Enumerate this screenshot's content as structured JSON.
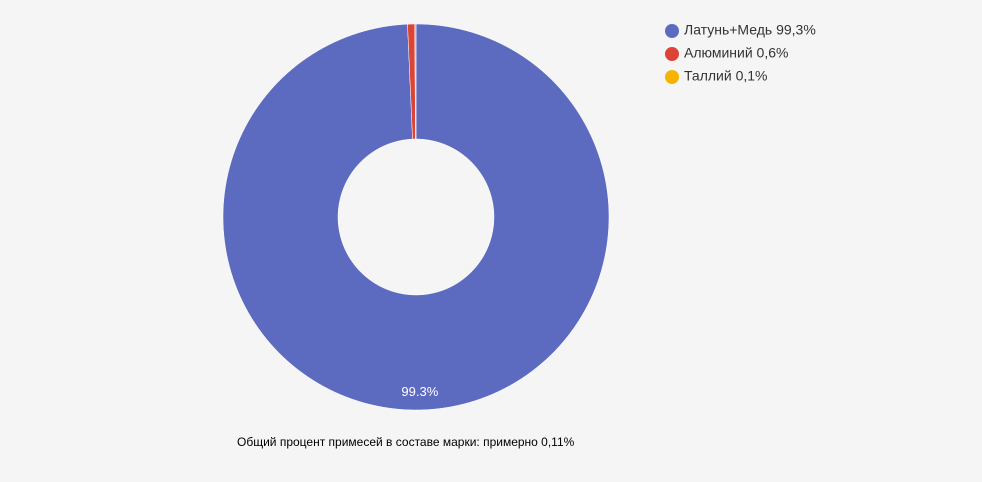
{
  "chart_data": {
    "type": "donut",
    "categories": [
      "Латунь+Медь 99,3%",
      "Алюминий 0,6%",
      "Таллий 0,1%"
    ],
    "values": [
      99.3,
      0.6,
      0.1
    ],
    "value_labels": [
      "99.3%",
      null,
      null
    ],
    "colors": [
      "#5c6bc0",
      "#dc4437",
      "#f4b400"
    ],
    "legend": "top-right",
    "caption": "Общий процент примесей в составе марки: примерно 0,11%"
  }
}
